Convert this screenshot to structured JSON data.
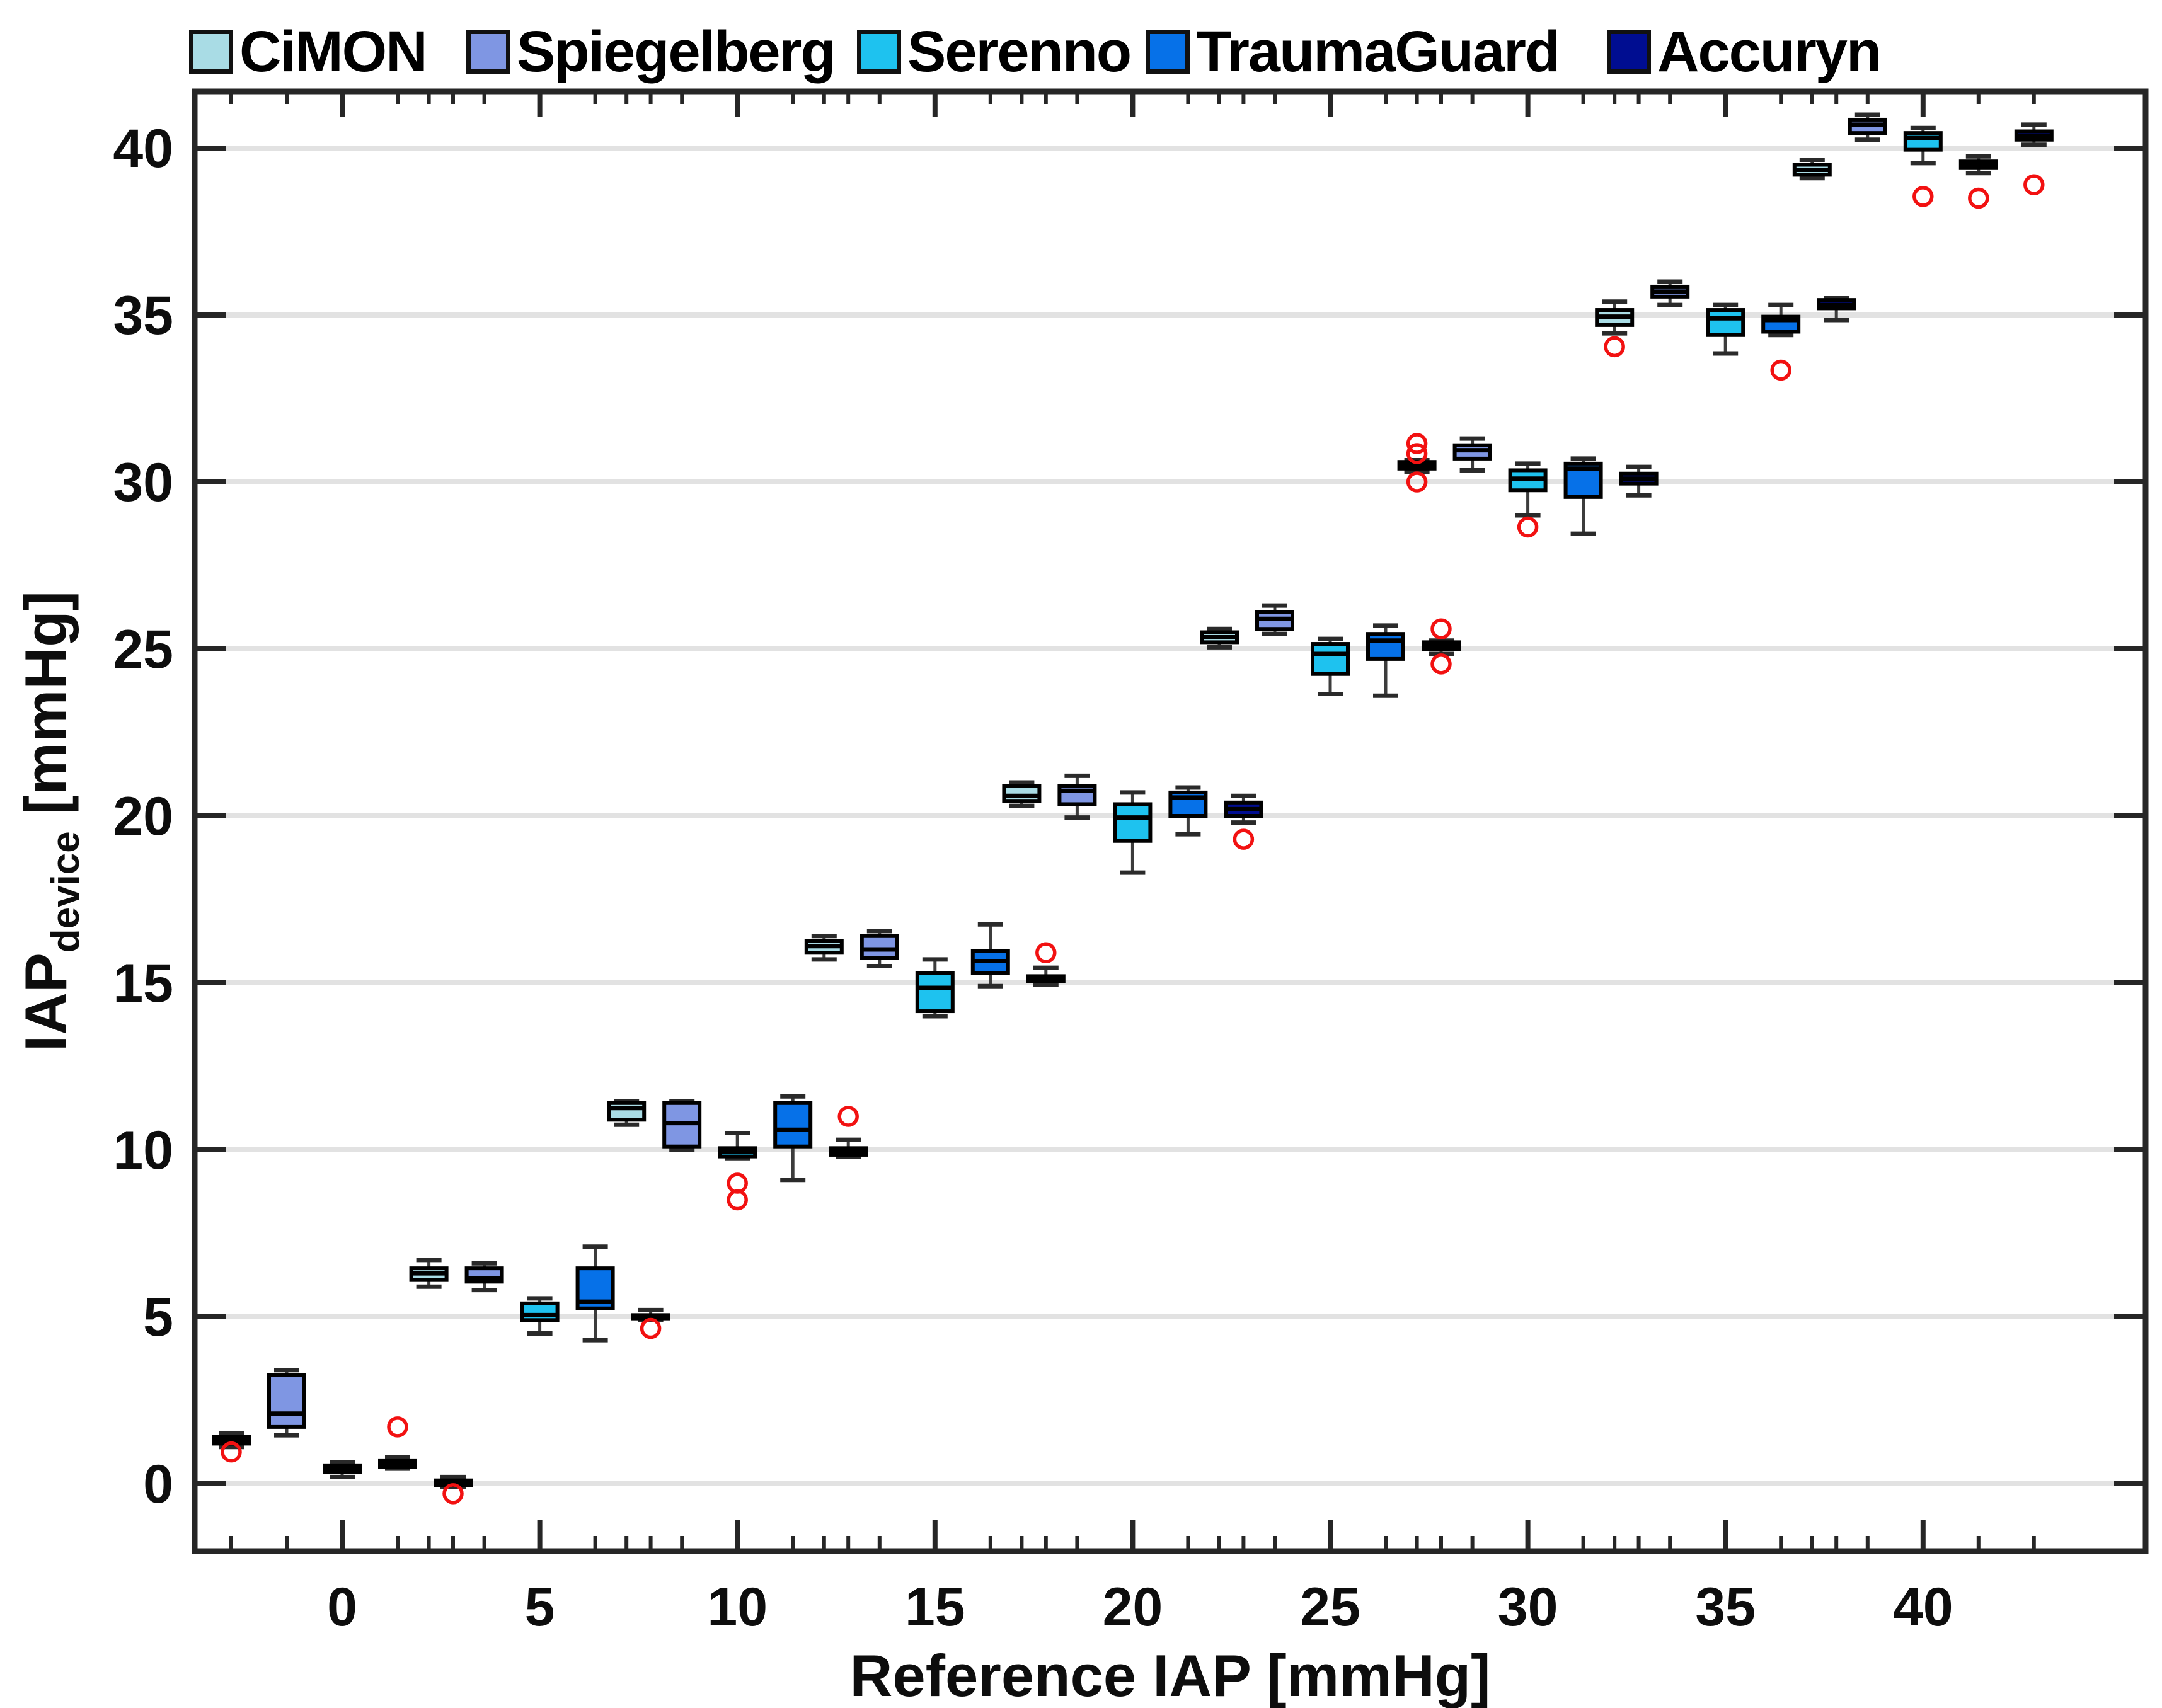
{
  "figure": {
    "xlabel": "Reference IAP [mmHg]",
    "ylabel": {
      "pre": "IAP",
      "sub": "device",
      "post": " [mmHg]"
    }
  },
  "chart_data": {
    "type": "boxplot",
    "title": "",
    "xlabel": "Reference IAP [mmHg]",
    "ylabel": "IAP_device [mmHg]",
    "x_categories": [
      "0",
      "5",
      "10",
      "15",
      "20",
      "25",
      "30",
      "35",
      "40"
    ],
    "y_tick_labels": [
      "0",
      "5",
      "10",
      "15",
      "20",
      "25",
      "30",
      "35",
      "40"
    ],
    "y_tick_values": [
      0,
      5,
      10,
      15,
      20,
      25,
      30,
      35,
      40
    ],
    "ylim": [
      -2.0,
      41.7
    ],
    "grid": "horizontal-major",
    "legend_position": "top-left",
    "colors": {
      "outlier": "#F21111",
      "whisker": "#3C3C3C",
      "box_edge": "#000000",
      "median": "#000000",
      "axis": "#262626",
      "gridline": "#E2E2E2",
      "text": "#0D0D0D",
      "background": "#FFFFFF"
    },
    "series": [
      {
        "name": "CiMON",
        "color": "#A9DCE5",
        "boxes": [
          {
            "ref": 0,
            "q1": 1.2,
            "med": 1.3,
            "q3": 1.4,
            "lo": 1.1,
            "hi": 1.5,
            "out": [
              0.95
            ]
          },
          {
            "ref": 5,
            "q1": 6.1,
            "med": 6.3,
            "q3": 6.45,
            "lo": 5.9,
            "hi": 6.7,
            "out": []
          },
          {
            "ref": 10,
            "q1": 10.9,
            "med": 11.25,
            "q3": 11.4,
            "lo": 10.75,
            "hi": 11.45,
            "out": []
          },
          {
            "ref": 15,
            "q1": 15.9,
            "med": 16.1,
            "q3": 16.25,
            "lo": 15.7,
            "hi": 16.4,
            "out": []
          },
          {
            "ref": 20,
            "q1": 20.45,
            "med": 20.6,
            "q3": 20.9,
            "lo": 20.3,
            "hi": 21.0,
            "out": []
          },
          {
            "ref": 25,
            "q1": 25.2,
            "med": 25.35,
            "q3": 25.5,
            "lo": 25.05,
            "hi": 25.6,
            "out": []
          },
          {
            "ref": 30,
            "q1": 30.4,
            "med": 30.5,
            "q3": 30.6,
            "lo": 30.3,
            "hi": 30.65,
            "out": [
              31.15,
              30.85,
              30.0
            ]
          },
          {
            "ref": 35,
            "q1": 34.7,
            "med": 34.95,
            "q3": 35.15,
            "lo": 34.45,
            "hi": 35.4,
            "out": [
              34.05
            ]
          },
          {
            "ref": 40,
            "q1": 39.2,
            "med": 39.35,
            "q3": 39.5,
            "lo": 39.1,
            "hi": 39.65,
            "out": []
          }
        ]
      },
      {
        "name": "Spiegelberg",
        "color": "#7F96E3",
        "boxes": [
          {
            "ref": 0,
            "q1": 1.7,
            "med": 2.1,
            "q3": 3.25,
            "lo": 1.45,
            "hi": 3.4,
            "out": []
          },
          {
            "ref": 5,
            "q1": 6.05,
            "med": 6.15,
            "q3": 6.45,
            "lo": 5.8,
            "hi": 6.6,
            "out": []
          },
          {
            "ref": 10,
            "q1": 10.1,
            "med": 10.8,
            "q3": 11.4,
            "lo": 10.0,
            "hi": 11.45,
            "out": []
          },
          {
            "ref": 15,
            "q1": 15.75,
            "med": 16.0,
            "q3": 16.4,
            "lo": 15.5,
            "hi": 16.55,
            "out": []
          },
          {
            "ref": 20,
            "q1": 20.35,
            "med": 20.75,
            "q3": 20.9,
            "lo": 19.95,
            "hi": 21.2,
            "out": []
          },
          {
            "ref": 25,
            "q1": 25.6,
            "med": 25.9,
            "q3": 26.1,
            "lo": 25.45,
            "hi": 26.3,
            "out": []
          },
          {
            "ref": 30,
            "q1": 30.7,
            "med": 30.95,
            "q3": 31.1,
            "lo": 30.35,
            "hi": 31.3,
            "out": []
          },
          {
            "ref": 35,
            "q1": 35.55,
            "med": 35.7,
            "q3": 35.85,
            "lo": 35.3,
            "hi": 36.0,
            "out": []
          },
          {
            "ref": 40,
            "q1": 40.45,
            "med": 40.7,
            "q3": 40.85,
            "lo": 40.25,
            "hi": 41.0,
            "out": []
          }
        ]
      },
      {
        "name": "Serenno",
        "color": "#1EC2EF",
        "boxes": [
          {
            "ref": 0,
            "q1": 0.35,
            "med": 0.45,
            "q3": 0.55,
            "lo": 0.2,
            "hi": 0.65,
            "out": []
          },
          {
            "ref": 5,
            "q1": 4.9,
            "med": 5.05,
            "q3": 5.4,
            "lo": 4.5,
            "hi": 5.55,
            "out": []
          },
          {
            "ref": 10,
            "q1": 9.8,
            "med": 9.95,
            "q3": 10.05,
            "lo": 9.75,
            "hi": 10.5,
            "out": [
              9.0,
              8.5
            ]
          },
          {
            "ref": 15,
            "q1": 14.15,
            "med": 14.85,
            "q3": 15.3,
            "lo": 14.0,
            "hi": 15.7,
            "out": []
          },
          {
            "ref": 20,
            "q1": 19.25,
            "med": 19.95,
            "q3": 20.35,
            "lo": 18.3,
            "hi": 20.7,
            "out": []
          },
          {
            "ref": 25,
            "q1": 24.25,
            "med": 24.85,
            "q3": 25.15,
            "lo": 23.65,
            "hi": 25.3,
            "out": []
          },
          {
            "ref": 30,
            "q1": 29.75,
            "med": 30.1,
            "q3": 30.35,
            "lo": 29.0,
            "hi": 30.55,
            "out": [
              28.65
            ]
          },
          {
            "ref": 35,
            "q1": 34.4,
            "med": 34.9,
            "q3": 35.15,
            "lo": 33.85,
            "hi": 35.3,
            "out": []
          },
          {
            "ref": 40,
            "q1": 39.95,
            "med": 40.3,
            "q3": 40.45,
            "lo": 39.55,
            "hi": 40.6,
            "out": [
              38.55
            ]
          }
        ]
      },
      {
        "name": "TraumaGuard",
        "color": "#0671E8",
        "boxes": [
          {
            "ref": 0,
            "q1": 0.5,
            "med": 0.6,
            "q3": 0.7,
            "lo": 0.45,
            "hi": 0.8,
            "out": [
              1.7
            ]
          },
          {
            "ref": 5,
            "q1": 5.25,
            "med": 5.45,
            "q3": 6.45,
            "lo": 4.3,
            "hi": 7.1,
            "out": []
          },
          {
            "ref": 10,
            "q1": 10.1,
            "med": 10.6,
            "q3": 11.4,
            "lo": 9.1,
            "hi": 11.6,
            "out": []
          },
          {
            "ref": 15,
            "q1": 15.3,
            "med": 15.65,
            "q3": 15.95,
            "lo": 14.9,
            "hi": 16.75,
            "out": []
          },
          {
            "ref": 20,
            "q1": 20.0,
            "med": 20.55,
            "q3": 20.7,
            "lo": 19.45,
            "hi": 20.85,
            "out": []
          },
          {
            "ref": 25,
            "q1": 24.7,
            "med": 25.25,
            "q3": 25.45,
            "lo": 23.6,
            "hi": 25.7,
            "out": []
          },
          {
            "ref": 30,
            "q1": 29.55,
            "med": 30.4,
            "q3": 30.55,
            "lo": 28.45,
            "hi": 30.7,
            "out": []
          },
          {
            "ref": 35,
            "q1": 34.5,
            "med": 34.85,
            "q3": 34.95,
            "lo": 34.4,
            "hi": 35.3,
            "out": [
              33.35
            ]
          },
          {
            "ref": 40,
            "q1": 39.4,
            "med": 39.5,
            "q3": 39.6,
            "lo": 39.25,
            "hi": 39.75,
            "out": [
              38.5
            ]
          }
        ]
      },
      {
        "name": "Accuryn",
        "color": "#000D91",
        "boxes": [
          {
            "ref": 0,
            "q1": -0.05,
            "med": 0.05,
            "q3": 0.1,
            "lo": -0.1,
            "hi": 0.2,
            "out": [
              -0.3
            ]
          },
          {
            "ref": 5,
            "q1": 4.95,
            "med": 5.0,
            "q3": 5.05,
            "lo": 4.9,
            "hi": 5.2,
            "out": [
              4.65
            ]
          },
          {
            "ref": 10,
            "q1": 9.85,
            "med": 9.95,
            "q3": 10.05,
            "lo": 9.8,
            "hi": 10.3,
            "out": [
              11.0
            ]
          },
          {
            "ref": 15,
            "q1": 15.05,
            "med": 15.1,
            "q3": 15.2,
            "lo": 14.95,
            "hi": 15.45,
            "out": [
              15.9
            ]
          },
          {
            "ref": 20,
            "q1": 20.0,
            "med": 20.2,
            "q3": 20.4,
            "lo": 19.8,
            "hi": 20.6,
            "out": [
              19.3
            ]
          },
          {
            "ref": 25,
            "q1": 25.0,
            "med": 25.1,
            "q3": 25.2,
            "lo": 24.85,
            "hi": 25.25,
            "out": [
              25.6,
              24.55
            ]
          },
          {
            "ref": 30,
            "q1": 29.95,
            "med": 30.1,
            "q3": 30.25,
            "lo": 29.6,
            "hi": 30.45,
            "out": []
          },
          {
            "ref": 35,
            "q1": 35.2,
            "med": 35.3,
            "q3": 35.45,
            "lo": 34.85,
            "hi": 35.5,
            "out": []
          },
          {
            "ref": 40,
            "q1": 40.25,
            "med": 40.35,
            "q3": 40.5,
            "lo": 40.1,
            "hi": 40.7,
            "out": [
              38.9
            ]
          }
        ]
      }
    ]
  }
}
